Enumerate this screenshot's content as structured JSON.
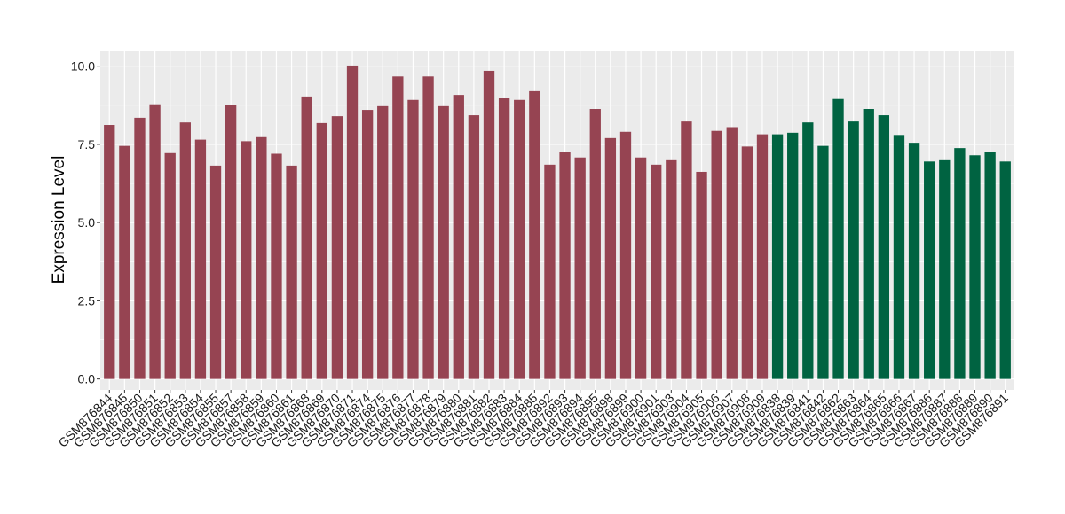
{
  "chart_data": {
    "type": "bar",
    "title": "",
    "xlabel": "",
    "ylabel": "Expression Level",
    "ylim": [
      -0.35,
      10.5
    ],
    "yticks": [
      0.0,
      2.5,
      5.0,
      7.5,
      10.0
    ],
    "ytick_labels": [
      "0.0",
      "2.5",
      "5.0",
      "7.5",
      "10.0"
    ],
    "grid": true,
    "legend": "none",
    "background": "#ebebeb",
    "gridline_color": "#ffffff",
    "colors": {
      "group1": "#964452",
      "group2": "#006341"
    },
    "categories": [
      "GSM876844",
      "GSM876845",
      "GSM876850",
      "GSM876851",
      "GSM876852",
      "GSM876853",
      "GSM876854",
      "GSM876855",
      "GSM876857",
      "GSM876858",
      "GSM876859",
      "GSM876860",
      "GSM876861",
      "GSM876868",
      "GSM876869",
      "GSM876870",
      "GSM876871",
      "GSM876874",
      "GSM876875",
      "GSM876876",
      "GSM876877",
      "GSM876878",
      "GSM876879",
      "GSM876880",
      "GSM876881",
      "GSM876882",
      "GSM876883",
      "GSM876884",
      "GSM876885",
      "GSM876892",
      "GSM876893",
      "GSM876894",
      "GSM876895",
      "GSM876898",
      "GSM876899",
      "GSM876900",
      "GSM876901",
      "GSM876903",
      "GSM876904",
      "GSM876905",
      "GSM876906",
      "GSM876907",
      "GSM876908",
      "GSM876909",
      "GSM876838",
      "GSM876839",
      "GSM876841",
      "GSM876842",
      "GSM876862",
      "GSM876863",
      "GSM876864",
      "GSM876865",
      "GSM876866",
      "GSM876867",
      "GSM876886",
      "GSM876887",
      "GSM876888",
      "GSM876889",
      "GSM876890",
      "GSM876891"
    ],
    "values": [
      8.12,
      7.45,
      8.35,
      8.78,
      7.22,
      8.2,
      7.65,
      6.82,
      8.75,
      7.6,
      7.73,
      7.2,
      6.82,
      9.03,
      8.18,
      8.4,
      10.02,
      8.6,
      8.72,
      9.67,
      8.92,
      9.67,
      8.72,
      9.08,
      8.43,
      9.85,
      8.97,
      8.92,
      9.2,
      6.85,
      7.25,
      7.08,
      8.63,
      7.7,
      7.9,
      7.08,
      6.85,
      7.02,
      8.23,
      6.62,
      7.93,
      8.05,
      7.43,
      7.82,
      7.82,
      7.87,
      8.2,
      7.45,
      8.95,
      8.23,
      8.63,
      8.43,
      7.8,
      7.55,
      6.95,
      7.02,
      7.38,
      7.15,
      7.25,
      6.95
    ],
    "groups": [
      1,
      1,
      1,
      1,
      1,
      1,
      1,
      1,
      1,
      1,
      1,
      1,
      1,
      1,
      1,
      1,
      1,
      1,
      1,
      1,
      1,
      1,
      1,
      1,
      1,
      1,
      1,
      1,
      1,
      1,
      1,
      1,
      1,
      1,
      1,
      1,
      1,
      1,
      1,
      1,
      1,
      1,
      1,
      1,
      2,
      2,
      2,
      2,
      2,
      2,
      2,
      2,
      2,
      2,
      2,
      2,
      2,
      2,
      2,
      2
    ]
  }
}
